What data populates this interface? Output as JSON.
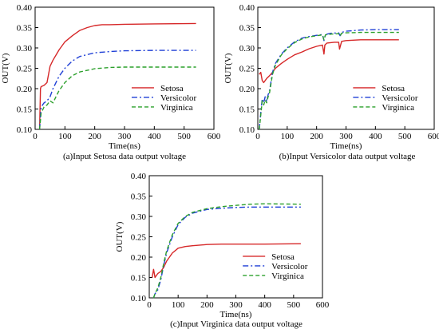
{
  "chart_data": [
    {
      "type": "line",
      "title": "",
      "caption": "(a)Input Setosa data output voltage",
      "xlabel": "Time(ns)",
      "ylabel": "OUT(V)",
      "xlim": [
        0,
        600
      ],
      "ylim": [
        0.1,
        0.4
      ],
      "xticks": [
        "0",
        "100",
        "200",
        "300",
        "400",
        "500",
        "600"
      ],
      "yticks": [
        "0.10",
        "0.15",
        "0.20",
        "0.25",
        "0.30",
        "0.35",
        "0.40"
      ],
      "grid": false,
      "legend_position": "center-right",
      "series": [
        {
          "name": "Setosa",
          "color": "#d62728",
          "dash": "solid",
          "x": [
            15,
            18,
            20,
            30,
            40,
            50,
            60,
            80,
            100,
            125,
            150,
            175,
            200,
            225,
            250,
            300,
            400,
            540
          ],
          "y": [
            0.1,
            0.2,
            0.205,
            0.208,
            0.215,
            0.255,
            0.27,
            0.295,
            0.315,
            0.33,
            0.343,
            0.35,
            0.355,
            0.357,
            0.357,
            0.358,
            0.359,
            0.36
          ]
        },
        {
          "name": "Versicolor",
          "color": "#1f3fd6",
          "dash": "dashdot",
          "x": [
            15,
            20,
            30,
            40,
            50,
            60,
            70,
            80,
            100,
            125,
            150,
            200,
            250,
            300,
            400,
            540
          ],
          "y": [
            0.1,
            0.155,
            0.165,
            0.17,
            0.18,
            0.2,
            0.215,
            0.23,
            0.25,
            0.268,
            0.279,
            0.288,
            0.291,
            0.293,
            0.294,
            0.294
          ]
        },
        {
          "name": "Virginica",
          "color": "#2ca02c",
          "dash": "dashed",
          "x": [
            15,
            20,
            30,
            40,
            50,
            60,
            70,
            80,
            100,
            125,
            150,
            200,
            250,
            300,
            400,
            540
          ],
          "y": [
            0.1,
            0.14,
            0.155,
            0.16,
            0.17,
            0.165,
            0.18,
            0.195,
            0.215,
            0.232,
            0.241,
            0.249,
            0.252,
            0.253,
            0.253,
            0.253
          ]
        }
      ]
    },
    {
      "type": "line",
      "title": "",
      "caption": "(b)Input Versicolor data output voltage",
      "xlabel": "Time(ns)",
      "ylabel": "OUT(V)",
      "xlim": [
        0,
        600
      ],
      "ylim": [
        0.1,
        0.4
      ],
      "xticks": [
        "0",
        "100",
        "200",
        "300",
        "400",
        "500",
        "600"
      ],
      "yticks": [
        "0.10",
        "0.15",
        "0.20",
        "0.25",
        "0.30",
        "0.35",
        "0.40"
      ],
      "grid": false,
      "legend_position": "center-right",
      "series": [
        {
          "name": "Setosa",
          "color": "#d62728",
          "dash": "solid",
          "x": [
            5,
            10,
            15,
            20,
            30,
            40,
            50,
            60,
            80,
            100,
            125,
            150,
            175,
            200,
            220,
            225,
            228,
            235,
            260,
            275,
            278,
            285,
            300,
            350,
            400,
            480
          ],
          "y": [
            0.235,
            0.24,
            0.22,
            0.215,
            0.225,
            0.232,
            0.24,
            0.25,
            0.262,
            0.272,
            0.283,
            0.29,
            0.298,
            0.304,
            0.307,
            0.285,
            0.307,
            0.312,
            0.314,
            0.314,
            0.297,
            0.316,
            0.318,
            0.32,
            0.32,
            0.32
          ]
        },
        {
          "name": "Versicolor",
          "color": "#1f3fd6",
          "dash": "dashdot",
          "x": [
            5,
            10,
            15,
            20,
            25,
            30,
            35,
            40,
            50,
            60,
            80,
            100,
            125,
            150,
            175,
            200,
            220,
            225,
            230,
            250,
            275,
            280,
            285,
            300,
            350,
            400,
            480
          ],
          "y": [
            0.1,
            0.14,
            0.175,
            0.165,
            0.18,
            0.17,
            0.185,
            0.195,
            0.24,
            0.262,
            0.285,
            0.3,
            0.315,
            0.324,
            0.328,
            0.331,
            0.333,
            0.318,
            0.333,
            0.336,
            0.337,
            0.33,
            0.338,
            0.341,
            0.344,
            0.345,
            0.345
          ]
        },
        {
          "name": "Virginica",
          "color": "#2ca02c",
          "dash": "dashed",
          "x": [
            5,
            10,
            15,
            20,
            25,
            30,
            35,
            40,
            50,
            60,
            80,
            100,
            125,
            150,
            175,
            200,
            220,
            225,
            230,
            250,
            275,
            280,
            285,
            300,
            350,
            400,
            480
          ],
          "y": [
            0.1,
            0.135,
            0.17,
            0.16,
            0.172,
            0.165,
            0.18,
            0.19,
            0.235,
            0.258,
            0.283,
            0.298,
            0.313,
            0.322,
            0.327,
            0.33,
            0.332,
            0.32,
            0.332,
            0.334,
            0.335,
            0.329,
            0.336,
            0.337,
            0.338,
            0.338,
            0.338
          ]
        }
      ]
    },
    {
      "type": "line",
      "title": "",
      "caption": "(c)Input Virginica data output voltage",
      "xlabel": "Time(ns)",
      "ylabel": "OUT(V)",
      "xlim": [
        0,
        600
      ],
      "ylim": [
        0.1,
        0.4
      ],
      "xticks": [
        "0",
        "100",
        "200",
        "300",
        "400",
        "500",
        "600"
      ],
      "yticks": [
        "0.10",
        "0.15",
        "0.20",
        "0.25",
        "0.30",
        "0.35",
        "0.40"
      ],
      "grid": false,
      "legend_position": "center-right",
      "series": [
        {
          "name": "Setosa",
          "color": "#d62728",
          "dash": "solid",
          "x": [
            10,
            15,
            20,
            25,
            30,
            40,
            50,
            60,
            70,
            80,
            100,
            125,
            150,
            200,
            250,
            300,
            400,
            525
          ],
          "y": [
            0.15,
            0.17,
            0.15,
            0.155,
            0.16,
            0.165,
            0.175,
            0.19,
            0.2,
            0.21,
            0.222,
            0.226,
            0.228,
            0.231,
            0.232,
            0.232,
            0.232,
            0.233
          ]
        },
        {
          "name": "Versicolor",
          "color": "#1f3fd6",
          "dash": "dashdot",
          "x": [
            15,
            20,
            30,
            40,
            50,
            60,
            80,
            100,
            125,
            150,
            200,
            250,
            300,
            350,
            400,
            525
          ],
          "y": [
            0.1,
            0.11,
            0.12,
            0.145,
            0.18,
            0.21,
            0.25,
            0.28,
            0.298,
            0.308,
            0.317,
            0.32,
            0.322,
            0.323,
            0.323,
            0.323
          ]
        },
        {
          "name": "Virginica",
          "color": "#2ca02c",
          "dash": "dashed",
          "x": [
            15,
            20,
            30,
            40,
            50,
            60,
            80,
            100,
            125,
            150,
            200,
            250,
            300,
            350,
            400,
            525
          ],
          "y": [
            0.1,
            0.11,
            0.125,
            0.15,
            0.185,
            0.215,
            0.255,
            0.283,
            0.3,
            0.31,
            0.319,
            0.324,
            0.327,
            0.33,
            0.331,
            0.33
          ]
        }
      ]
    }
  ]
}
